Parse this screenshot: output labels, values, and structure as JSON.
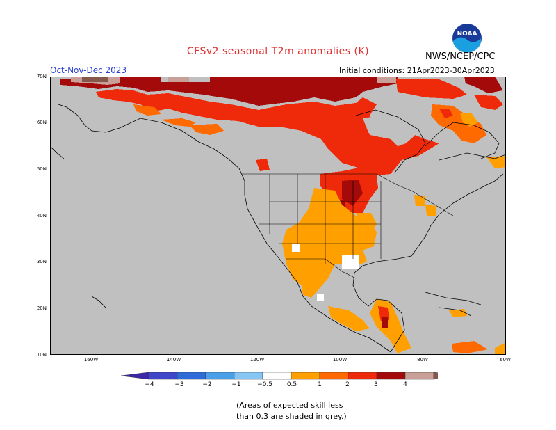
{
  "header": {
    "title": "CFSv2 seasonal T2m anomalies (K)",
    "agency": "NWS/NCEP/CPC",
    "logo_text": "NOAA",
    "season": "Oct-Nov-Dec 2023",
    "initial_conditions": "Initial conditions: 21Apr2023-30Apr2023"
  },
  "map": {
    "lat_labels": [
      "70N",
      "60N",
      "50N",
      "40N",
      "30N",
      "20N",
      "10N"
    ],
    "lon_labels": [
      "160W",
      "140W",
      "120W",
      "100W",
      "80W",
      "60W"
    ],
    "land_color": "#c0c0c0"
  },
  "colorbar": {
    "labels": [
      "−4",
      "−3",
      "−2",
      "−1",
      "−0.5",
      "0.5",
      "1",
      "2",
      "3",
      "4"
    ],
    "colors": [
      "#3a28a8",
      "#3f46c8",
      "#2d6cd8",
      "#4aa0e8",
      "#86c6f4",
      "#ffffff",
      "#ffa000",
      "#ff6a00",
      "#ef2a0a",
      "#a40a0a",
      "#c8a098",
      "#86584c"
    ]
  },
  "note": {
    "line1": "(Areas of expected skill less",
    "line2": "than 0.3 are shaded in grey.)"
  }
}
